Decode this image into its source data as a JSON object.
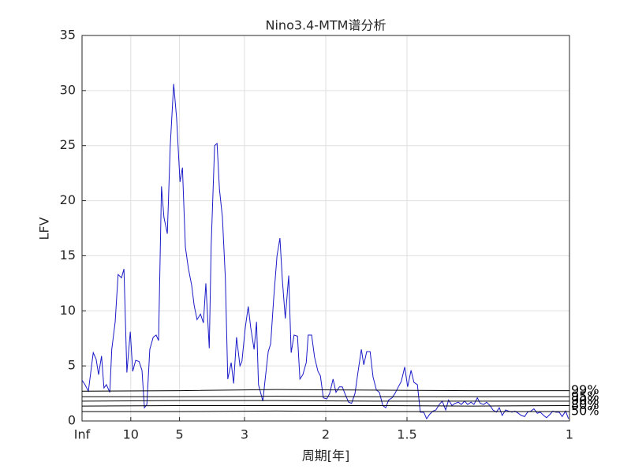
{
  "chart_data": {
    "type": "line",
    "title": "Nino3.4-MTM谱分析",
    "xlabel": "周期[年]",
    "ylabel": "LFV",
    "xlim": [
      0,
      1
    ],
    "ylim": [
      0,
      35
    ],
    "xticks": [
      {
        "value": 0,
        "label": "Inf"
      },
      {
        "value": 0.1,
        "label": "10"
      },
      {
        "value": 0.2,
        "label": "5"
      },
      {
        "value": 0.3333,
        "label": "3"
      },
      {
        "value": 0.5,
        "label": "2"
      },
      {
        "value": 0.6667,
        "label": "1.5"
      },
      {
        "value": 1,
        "label": "1"
      }
    ],
    "yticks": [
      0,
      5,
      10,
      15,
      20,
      25,
      30,
      35
    ],
    "grid": true,
    "series": [
      {
        "color": "#1a1ac8",
        "x": [
          0,
          0.006,
          0.013,
          0.023,
          0.029,
          0.034,
          0.04,
          0.045,
          0.05,
          0.057,
          0.061,
          0.068,
          0.074,
          0.081,
          0.086,
          0.092,
          0.099,
          0.104,
          0.11,
          0.117,
          0.123,
          0.128,
          0.133,
          0.139,
          0.146,
          0.152,
          0.157,
          0.163,
          0.168,
          0.175,
          0.181,
          0.188,
          0.194,
          0.201,
          0.206,
          0.212,
          0.218,
          0.225,
          0.23,
          0.236,
          0.243,
          0.249,
          0.254,
          0.261,
          0.265,
          0.272,
          0.277,
          0.282,
          0.288,
          0.294,
          0.299,
          0.306,
          0.311,
          0.317,
          0.324,
          0.328,
          0.335,
          0.341,
          0.346,
          0.353,
          0.358,
          0.362,
          0.371,
          0.375,
          0.382,
          0.387,
          0.393,
          0.4,
          0.406,
          0.411,
          0.417,
          0.424,
          0.429,
          0.435,
          0.442,
          0.447,
          0.453,
          0.46,
          0.464,
          0.471,
          0.477,
          0.484,
          0.489,
          0.495,
          0.502,
          0.508,
          0.515,
          0.521,
          0.528,
          0.534,
          0.54,
          0.547,
          0.553,
          0.56,
          0.566,
          0.573,
          0.578,
          0.584,
          0.591,
          0.597,
          0.604,
          0.61,
          0.617,
          0.623,
          0.629,
          0.636,
          0.642,
          0.649,
          0.655,
          0.662,
          0.668,
          0.675,
          0.681,
          0.688,
          0.694,
          0.701,
          0.707,
          0.713,
          0.72,
          0.726,
          0.733,
          0.739,
          0.746,
          0.752,
          0.759,
          0.765,
          0.772,
          0.778,
          0.785,
          0.791,
          0.798,
          0.804,
          0.811,
          0.817,
          0.824,
          0.83,
          0.837,
          0.843,
          0.85,
          0.856,
          0.862,
          0.869,
          0.875,
          0.882,
          0.888,
          0.895,
          0.901,
          0.908,
          0.914,
          0.921,
          0.927,
          0.934,
          0.94,
          0.947,
          0.953,
          0.96,
          0.966,
          0.972,
          0.979,
          0.985,
          0.992,
          0.998
        ],
        "values": [
          3.7,
          3.3,
          2.7,
          6.2,
          5.6,
          4.2,
          5.9,
          3.0,
          3.3,
          2.6,
          6.5,
          9.0,
          13.3,
          13.0,
          13.8,
          4.4,
          8.1,
          4.5,
          5.5,
          5.4,
          4.6,
          1.2,
          1.5,
          6.5,
          7.6,
          7.8,
          7.3,
          21.3,
          18.5,
          17.0,
          25.0,
          30.6,
          27.5,
          21.7,
          23.0,
          15.8,
          13.9,
          12.3,
          10.5,
          9.2,
          9.7,
          8.9,
          12.5,
          6.6,
          16.0,
          25.0,
          25.2,
          21.0,
          18.5,
          13.0,
          3.8,
          5.3,
          3.4,
          7.6,
          5.0,
          5.4,
          8.5,
          10.4,
          8.5,
          6.5,
          9.0,
          3.3,
          1.8,
          3.5,
          6.3,
          7.0,
          11.0,
          15.0,
          16.6,
          12.8,
          9.3,
          13.2,
          6.2,
          7.8,
          7.7,
          3.8,
          4.2,
          5.3,
          7.8,
          7.8,
          5.8,
          4.5,
          4.1,
          2.1,
          2.0,
          2.5,
          3.8,
          2.6,
          3.1,
          3.1,
          2.4,
          1.7,
          1.6,
          2.5,
          4.4,
          6.5,
          5.1,
          6.3,
          6.3,
          4.0,
          2.8,
          2.6,
          1.4,
          1.2,
          1.9,
          2.1,
          2.5,
          3.1,
          3.6,
          4.9,
          3.1,
          4.6,
          3.5,
          3.3,
          0.8,
          0.8,
          0.2,
          0.6,
          0.9,
          1.0,
          1.5,
          1.8,
          1.0,
          1.9,
          1.4,
          1.6,
          1.7,
          1.5,
          1.8,
          1.5,
          1.7,
          1.5,
          2.1,
          1.6,
          1.5,
          1.7,
          1.4,
          1.0,
          0.8,
          1.2,
          0.5,
          1.0,
          0.9,
          0.8,
          0.9,
          0.7,
          0.5,
          0.4,
          0.8,
          0.9,
          1.1,
          0.7,
          0.8,
          0.5,
          0.3,
          0.6,
          0.9,
          0.8,
          0.8,
          0.4,
          0.9,
          0.2
        ]
      },
      {
        "name": "99%",
        "color": "#000000",
        "x": [
          0,
          0.2,
          0.4,
          0.6,
          0.8,
          1
        ],
        "values": [
          2.7,
          2.75,
          2.85,
          2.8,
          2.75,
          2.75
        ]
      },
      {
        "name": "95%",
        "color": "#000000",
        "x": [
          0,
          0.2,
          0.4,
          0.6,
          0.8,
          1
        ],
        "values": [
          2.2,
          2.2,
          2.25,
          2.2,
          2.2,
          2.2
        ]
      },
      {
        "name": "90%",
        "color": "#000000",
        "x": [
          0,
          0.2,
          0.4,
          0.6,
          0.8,
          1
        ],
        "values": [
          1.8,
          1.85,
          1.85,
          1.8,
          1.8,
          1.8
        ]
      },
      {
        "name": "80%",
        "color": "#000000",
        "x": [
          0,
          0.2,
          0.4,
          0.6,
          0.8,
          1
        ],
        "values": [
          1.35,
          1.4,
          1.4,
          1.4,
          1.35,
          1.4
        ]
      },
      {
        "name": "50%",
        "color": "#000000",
        "x": [
          0,
          0.2,
          0.4,
          0.6,
          0.8,
          1
        ],
        "values": [
          0.85,
          0.85,
          0.9,
          0.85,
          0.85,
          0.85
        ]
      }
    ]
  }
}
